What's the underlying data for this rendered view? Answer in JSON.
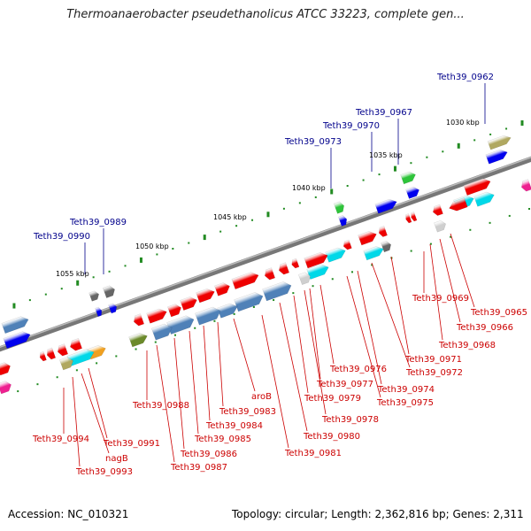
{
  "title": "Thermoanaerobacter pseudethanolicus ATCC 33223, complete gen...",
  "footer": {
    "accession": "Accession: NC_010321",
    "topology": "Topology: circular; Length: 2,362,816 bp; Genes: 2,311"
  },
  "scale_labels": [
    "1030 kbp",
    "1035 kbp",
    "1040 kbp",
    "1045 kbp",
    "1050 kbp",
    "1055 kbp"
  ],
  "gene_labels_top": [
    "Teth39_0962",
    "Teth39_0967",
    "Teth39_0970",
    "Teth39_0973",
    "Teth39_0989",
    "Teth39_0990"
  ],
  "gene_labels_bottom": [
    "Teth39_0965",
    "Teth39_0966",
    "Teth39_0968",
    "Teth39_0969",
    "Teth39_0971",
    "Teth39_0972",
    "Teth39_0974",
    "Teth39_0975",
    "Teth39_0976",
    "Teth39_0977",
    "Teth39_0978",
    "Teth39_0979",
    "Teth39_0980",
    "Teth39_0981",
    "aroB",
    "Teth39_0983",
    "Teth39_0984",
    "Teth39_0985",
    "Teth39_0986",
    "Teth39_0987",
    "Teth39_0988",
    "Teth39_0991",
    "nagB",
    "Teth39_0993",
    "Teth39_0994"
  ],
  "colors": {
    "label_top": "#00008b",
    "label_bottom": "#cc0000",
    "backbone": "#888888",
    "gene_red": "#ee0000",
    "gene_blue": "#0000ee",
    "gene_steel": "#4f81b8",
    "gene_cyan": "#00d8e8",
    "gene_olive": "#b0a860",
    "gene_green": "#2ec43a",
    "gene_magenta": "#ee2090",
    "gene_gray": "#666666",
    "gene_orange": "#f0a020",
    "scale_tick": "#228b22"
  }
}
